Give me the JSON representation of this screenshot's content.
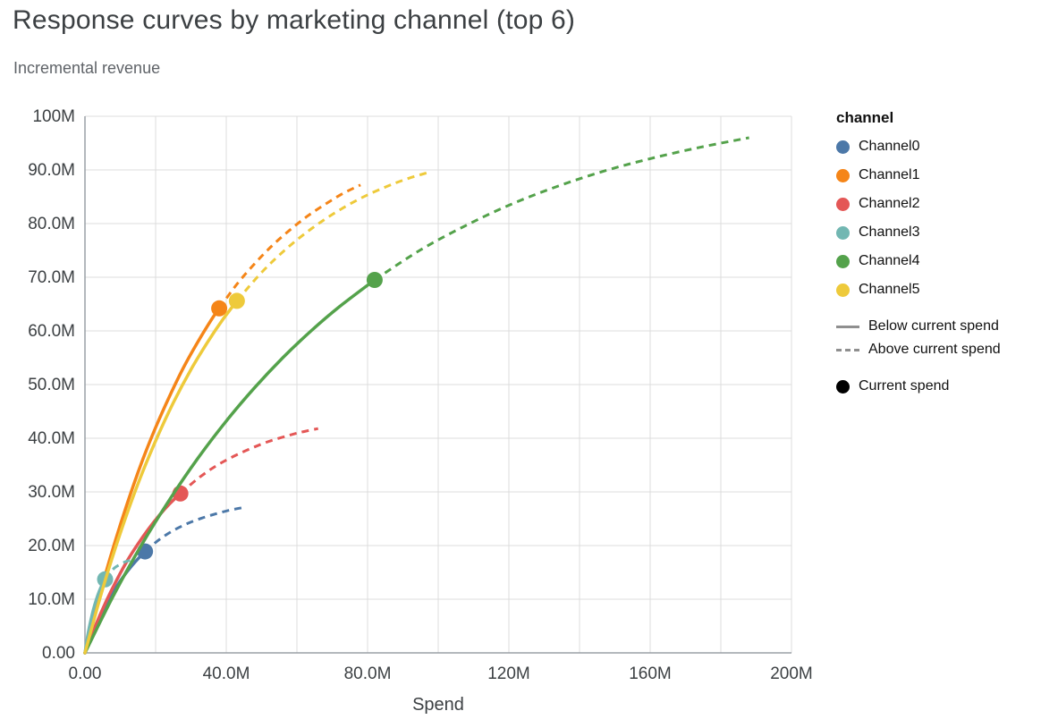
{
  "header": {
    "title": "Response curves by marketing channel (top 6)",
    "subtitle": "Incremental revenue"
  },
  "chart_data": {
    "type": "line",
    "title": "Response curves by marketing channel (top 6)",
    "subtitle": "Incremental revenue",
    "xlabel": "Spend",
    "ylabel": "Incremental revenue",
    "xlim": [
      0,
      200
    ],
    "ylim": [
      0,
      100
    ],
    "units": "millions",
    "grid": {
      "x_step": 20,
      "y_step": 10,
      "grid_color": "#dcdcdc",
      "axis_color": "#9aa0a6",
      "tick_label_color": "#3c4043"
    },
    "x_ticks": [
      {
        "value": 0,
        "label": "0.00"
      },
      {
        "value": 40,
        "label": "40.0M"
      },
      {
        "value": 80,
        "label": "80.0M"
      },
      {
        "value": 120,
        "label": "120M"
      },
      {
        "value": 160,
        "label": "160M"
      },
      {
        "value": 200,
        "label": "200M"
      }
    ],
    "y_ticks": [
      {
        "value": 0,
        "label": "0.00"
      },
      {
        "value": 10,
        "label": "10.0M"
      },
      {
        "value": 20,
        "label": "20.0M"
      },
      {
        "value": 30,
        "label": "30.0M"
      },
      {
        "value": 40,
        "label": "40.0M"
      },
      {
        "value": 50,
        "label": "50.0M"
      },
      {
        "value": 60,
        "label": "60.0M"
      },
      {
        "value": 70,
        "label": "70.0M"
      },
      {
        "value": 80,
        "label": "80.0M"
      },
      {
        "value": 90,
        "label": "90.0M"
      },
      {
        "value": 100,
        "label": "100M"
      }
    ],
    "legend": {
      "title": "channel",
      "style_color": "#8f8f8f",
      "style_items": [
        {
          "style": "solid",
          "label": "Below current spend"
        },
        {
          "style": "dashed",
          "label": "Above current spend"
        }
      ],
      "marker_item": {
        "label": "Current spend",
        "color": "#000000"
      }
    },
    "series": [
      {
        "name": "Channel0",
        "color": "#4c78a8",
        "current_spend": {
          "x": 17,
          "y": 18.9
        },
        "below_current": [
          [
            0,
            0
          ],
          [
            2,
            3.4
          ],
          [
            4,
            6.4
          ],
          [
            6,
            9.0
          ],
          [
            8,
            11.3
          ],
          [
            10,
            13.4
          ],
          [
            12,
            15.2
          ],
          [
            14,
            16.8
          ],
          [
            17,
            18.9
          ]
        ],
        "above_current": [
          [
            17,
            18.9
          ],
          [
            21,
            21.1
          ],
          [
            25,
            22.8
          ],
          [
            29,
            24.1
          ],
          [
            33,
            25.1
          ],
          [
            37,
            25.9
          ],
          [
            41,
            26.6
          ],
          [
            45,
            27.1
          ]
        ]
      },
      {
        "name": "Channel1",
        "color": "#f58518",
        "current_spend": {
          "x": 38,
          "y": 64.2
        },
        "below_current": [
          [
            0,
            0
          ],
          [
            4,
            10.4
          ],
          [
            8,
            19.6
          ],
          [
            12,
            27.9
          ],
          [
            16,
            35.4
          ],
          [
            20,
            42.0
          ],
          [
            24,
            47.9
          ],
          [
            28,
            53.3
          ],
          [
            32,
            58.0
          ],
          [
            36,
            62.3
          ],
          [
            38,
            64.2
          ]
        ],
        "above_current": [
          [
            38,
            64.2
          ],
          [
            43,
            68.7
          ],
          [
            48,
            72.5
          ],
          [
            53,
            75.9
          ],
          [
            58,
            78.8
          ],
          [
            63,
            81.4
          ],
          [
            68,
            83.6
          ],
          [
            73,
            85.6
          ],
          [
            78,
            87.2
          ]
        ]
      },
      {
        "name": "Channel2",
        "color": "#e45756",
        "current_spend": {
          "x": 27,
          "y": 29.7
        },
        "below_current": [
          [
            0,
            0
          ],
          [
            3,
            5.1
          ],
          [
            6,
            9.6
          ],
          [
            9,
            13.6
          ],
          [
            12,
            17.2
          ],
          [
            15,
            20.3
          ],
          [
            18,
            23.1
          ],
          [
            21,
            25.6
          ],
          [
            24,
            27.8
          ],
          [
            27,
            29.7
          ]
        ],
        "above_current": [
          [
            27,
            29.7
          ],
          [
            32,
            32.5
          ],
          [
            37,
            34.8
          ],
          [
            42,
            36.6
          ],
          [
            47,
            38.1
          ],
          [
            52,
            39.4
          ],
          [
            57,
            40.4
          ],
          [
            61,
            41.1
          ],
          [
            66,
            41.8
          ]
        ]
      },
      {
        "name": "Channel3",
        "color": "#72b7b2",
        "current_spend": {
          "x": 5.7,
          "y": 13.7
        },
        "below_current": [
          [
            0,
            0
          ],
          [
            0.8,
            3.3
          ],
          [
            1.6,
            5.9
          ],
          [
            2.4,
            8.1
          ],
          [
            3.2,
            9.9
          ],
          [
            4,
            11.4
          ],
          [
            4.8,
            12.6
          ],
          [
            5.7,
            13.7
          ]
        ],
        "above_current": [
          [
            5.7,
            13.7
          ],
          [
            7,
            14.9
          ],
          [
            8.5,
            15.9
          ],
          [
            10,
            16.5
          ],
          [
            11.5,
            17.0
          ],
          [
            13,
            17.3
          ]
        ]
      },
      {
        "name": "Channel4",
        "color": "#54a24b",
        "current_spend": {
          "x": 82,
          "y": 69.5
        },
        "below_current": [
          [
            0,
            0
          ],
          [
            8,
            10.6
          ],
          [
            16,
            20.1
          ],
          [
            24,
            28.6
          ],
          [
            32,
            36.3
          ],
          [
            40,
            43.2
          ],
          [
            48,
            49.4
          ],
          [
            56,
            55.0
          ],
          [
            64,
            60.0
          ],
          [
            72,
            64.5
          ],
          [
            82,
            69.5
          ]
        ],
        "above_current": [
          [
            82,
            69.5
          ],
          [
            95,
            75.1
          ],
          [
            108,
            79.7
          ],
          [
            121,
            83.7
          ],
          [
            134,
            87.0
          ],
          [
            147,
            89.8
          ],
          [
            160,
            92.1
          ],
          [
            174,
            94.2
          ],
          [
            188,
            96.0
          ]
        ]
      },
      {
        "name": "Channel5",
        "color": "#eeca3b",
        "current_spend": {
          "x": 43,
          "y": 65.6
        },
        "below_current": [
          [
            0,
            0
          ],
          [
            5,
            11.9
          ],
          [
            10,
            22.3
          ],
          [
            15,
            31.5
          ],
          [
            20,
            39.5
          ],
          [
            25,
            46.6
          ],
          [
            30,
            52.8
          ],
          [
            35,
            58.2
          ],
          [
            39,
            62.1
          ],
          [
            43,
            65.6
          ]
        ],
        "above_current": [
          [
            43,
            65.6
          ],
          [
            50,
            70.9
          ],
          [
            57,
            75.3
          ],
          [
            64,
            79.0
          ],
          [
            71,
            82.1
          ],
          [
            78,
            84.7
          ],
          [
            85,
            86.8
          ],
          [
            91,
            88.3
          ],
          [
            97,
            89.5
          ]
        ]
      }
    ]
  }
}
